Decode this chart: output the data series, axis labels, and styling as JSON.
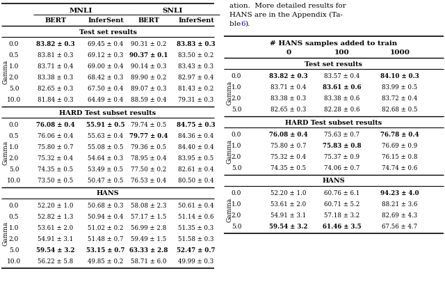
{
  "left_table": {
    "col_headers_row1": [
      "MNLI",
      "SNLI"
    ],
    "col_headers_row2": [
      "BERT",
      "InferSent",
      "BERT",
      "InferSent"
    ],
    "section_headers": [
      "Test set results",
      "HARD Test subset results",
      "HANS"
    ],
    "gamma_label": "Gamma",
    "test_rows": [
      [
        "0.0",
        "83.82",
        "0.3",
        "69.45",
        "0.4",
        "90.31",
        "0.2",
        "83.83",
        "0.3"
      ],
      [
        "0.5",
        "83.81",
        "0.3",
        "69.12",
        "0.3",
        "90.37",
        "0.1",
        "83.50",
        "0.2"
      ],
      [
        "1.0",
        "83.71",
        "0.4",
        "69.00",
        "0.4",
        "90.14",
        "0.3",
        "83.43",
        "0.3"
      ],
      [
        "2.0",
        "83.38",
        "0.3",
        "68.42",
        "0.3",
        "89.90",
        "0.2",
        "82.97",
        "0.4"
      ],
      [
        "5.0",
        "82.65",
        "0.3",
        "67.50",
        "0.4",
        "89.07",
        "0.3",
        "81.43",
        "0.2"
      ],
      [
        "10.0",
        "81.84",
        "0.3",
        "64.49",
        "0.4",
        "88.59",
        "0.4",
        "79.31",
        "0.3"
      ]
    ],
    "test_bold": [
      [
        true,
        false,
        false,
        true
      ],
      [
        false,
        false,
        true,
        false
      ],
      [
        false,
        false,
        false,
        false
      ],
      [
        false,
        false,
        false,
        false
      ],
      [
        false,
        false,
        false,
        false
      ],
      [
        false,
        false,
        false,
        false
      ]
    ],
    "hard_rows": [
      [
        "0.0",
        "76.08",
        "0.4",
        "55.91",
        "0.5",
        "79.74",
        "0.5",
        "84.75",
        "0.3"
      ],
      [
        "0.5",
        "76.06",
        "0.4",
        "55.63",
        "0.4",
        "79.77",
        "0.4",
        "84.36",
        "0.4"
      ],
      [
        "1.0",
        "75.80",
        "0.7",
        "55.08",
        "0.5",
        "79.36",
        "0.5",
        "84.40",
        "0.4"
      ],
      [
        "2.0",
        "75.32",
        "0.4",
        "54.64",
        "0.3",
        "78.95",
        "0.4",
        "83.95",
        "0.5"
      ],
      [
        "5.0",
        "74.35",
        "0.5",
        "53.49",
        "0.5",
        "77.50",
        "0.2",
        "82.61",
        "0.4"
      ],
      [
        "10.0",
        "73.50",
        "0.5",
        "50.47",
        "0.5",
        "76.53",
        "0.4",
        "80.50",
        "0.4"
      ]
    ],
    "hard_bold": [
      [
        true,
        true,
        false,
        true
      ],
      [
        false,
        false,
        true,
        false
      ],
      [
        false,
        false,
        false,
        false
      ],
      [
        false,
        false,
        false,
        false
      ],
      [
        false,
        false,
        false,
        false
      ],
      [
        false,
        false,
        false,
        false
      ]
    ],
    "hans_rows": [
      [
        "0.0",
        "52.20",
        "1.0",
        "50.68",
        "0.3",
        "58.08",
        "2.3",
        "50.61",
        "0.4"
      ],
      [
        "0.5",
        "52.82",
        "1.3",
        "50.94",
        "0.4",
        "57.17",
        "1.5",
        "51.14",
        "0.6"
      ],
      [
        "1.0",
        "53.61",
        "2.0",
        "51.02",
        "0.2",
        "56.99",
        "2.8",
        "51.35",
        "0.3"
      ],
      [
        "2.0",
        "54.91",
        "3.1",
        "51.48",
        "0.7",
        "59.49",
        "1.5",
        "51.58",
        "0.3"
      ],
      [
        "5.0",
        "59.54",
        "3.2",
        "53.15",
        "0.7",
        "63.33",
        "2.8",
        "52.47",
        "0.7"
      ],
      [
        "10.0",
        "56.22",
        "5.8",
        "49.85",
        "0.2",
        "58.71",
        "6.0",
        "49.99",
        "0.3"
      ]
    ],
    "hans_bold": [
      [
        false,
        false,
        false,
        false
      ],
      [
        false,
        false,
        false,
        false
      ],
      [
        false,
        false,
        false,
        false
      ],
      [
        false,
        false,
        false,
        false
      ],
      [
        true,
        true,
        true,
        true
      ],
      [
        false,
        false,
        false,
        false
      ]
    ]
  },
  "right_table": {
    "main_header": "# HANS samples added to train",
    "col_headers": [
      "0",
      "100",
      "1000"
    ],
    "gamma_label": "Gamma",
    "test_rows": [
      [
        "0.0",
        "83.82",
        "0.3",
        "83.57",
        "0.4",
        "84.10",
        "0.3"
      ],
      [
        "1.0",
        "83.71",
        "0.4",
        "83.61",
        "0.6",
        "83.99",
        "0.5"
      ],
      [
        "2.0",
        "83.38",
        "0.3",
        "83.38",
        "0.6",
        "83.72",
        "0.4"
      ],
      [
        "5.0",
        "82.65",
        "0.3",
        "82.28",
        "0.6",
        "82.68",
        "0.5"
      ]
    ],
    "test_bold": [
      [
        true,
        false,
        true
      ],
      [
        false,
        true,
        false
      ],
      [
        false,
        false,
        false
      ],
      [
        false,
        false,
        false
      ]
    ],
    "hard_rows": [
      [
        "0.0",
        "76.08",
        "0.4",
        "75.63",
        "0.7",
        "76.78",
        "0.4"
      ],
      [
        "1.0",
        "75.80",
        "0.7",
        "75.83",
        "0.8",
        "76.69",
        "0.9"
      ],
      [
        "2.0",
        "75.32",
        "0.4",
        "75.37",
        "0.9",
        "76.15",
        "0.8"
      ],
      [
        "5.0",
        "74.35",
        "0.5",
        "74.06",
        "0.7",
        "74.74",
        "0.6"
      ]
    ],
    "hard_bold": [
      [
        true,
        false,
        true
      ],
      [
        false,
        true,
        false
      ],
      [
        false,
        false,
        false
      ],
      [
        false,
        false,
        false
      ]
    ],
    "hans_rows": [
      [
        "0.0",
        "52.20",
        "1.0",
        "60.76",
        "6.1",
        "94.23",
        "4.0"
      ],
      [
        "1.0",
        "53.61",
        "2.0",
        "60.71",
        "5.2",
        "88.21",
        "3.6"
      ],
      [
        "2.0",
        "54.91",
        "3.1",
        "57.18",
        "3.2",
        "82.69",
        "4.3"
      ],
      [
        "5.0",
        "59.54",
        "3.2",
        "61.46",
        "3.5",
        "67.56",
        "4.7"
      ]
    ],
    "hans_bold": [
      [
        false,
        false,
        true
      ],
      [
        false,
        false,
        false
      ],
      [
        false,
        false,
        false
      ],
      [
        true,
        true,
        false
      ]
    ]
  },
  "text_lines": [
    "ation.  More detailed results for",
    "HANS are in the Appendix (Ta-",
    "ble 6)."
  ]
}
